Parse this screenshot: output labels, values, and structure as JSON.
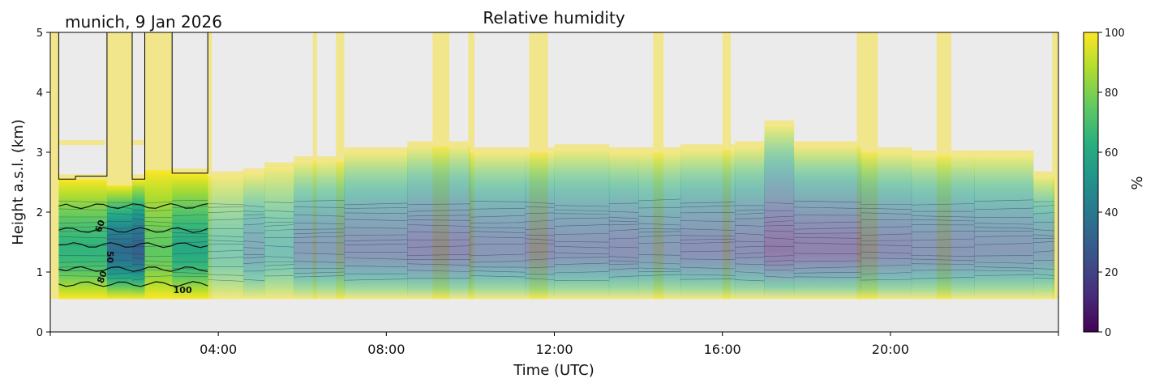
{
  "chart_data": {
    "type": "heatmap",
    "title": "Relative humidity",
    "subtitle": "munich, 9 Jan 2026",
    "xlabel": "Time (UTC)",
    "ylabel": "Height a.s.l. (km)",
    "xlim_hours": [
      0,
      24
    ],
    "ylim_km": [
      0,
      5
    ],
    "xticks": [
      {
        "hour": 4,
        "label": "04:00"
      },
      {
        "hour": 8,
        "label": "08:00"
      },
      {
        "hour": 12,
        "label": "12:00"
      },
      {
        "hour": 16,
        "label": "16:00"
      },
      {
        "hour": 20,
        "label": "20:00"
      }
    ],
    "yticks": [
      {
        "value": 0,
        "label": "0"
      },
      {
        "value": 1,
        "label": "1"
      },
      {
        "value": 2,
        "label": "2"
      },
      {
        "value": 3,
        "label": "3"
      },
      {
        "value": 4,
        "label": "4"
      },
      {
        "value": 5,
        "label": "5"
      }
    ],
    "colorbar": {
      "label": "%",
      "range": [
        0,
        100
      ],
      "colormap": "viridis",
      "ticks": [
        {
          "value": 0,
          "label": "0"
        },
        {
          "value": 20,
          "label": "20"
        },
        {
          "value": 40,
          "label": "40"
        },
        {
          "value": 60,
          "label": "60"
        },
        {
          "value": 80,
          "label": "80"
        },
        {
          "value": 100,
          "label": "100"
        }
      ]
    },
    "colors": {
      "background": "#ebebeb",
      "missing_fill": "#f2e68c",
      "contour_line": "#111111"
    },
    "data_base_km": 0.55,
    "solid_segment": {
      "start": 0.2,
      "end": 3.75
    },
    "columns": [
      {
        "start": 0.0,
        "end": 0.2,
        "top": 5.0,
        "rh_min": null
      },
      {
        "start": 0.2,
        "end": 1.35,
        "top": 2.55,
        "rh_min": 65
      },
      {
        "start": 1.35,
        "end": 1.95,
        "top": 2.45,
        "rh_min": 35
      },
      {
        "start": 1.95,
        "end": 2.25,
        "top": 2.55,
        "rh_min": 30
      },
      {
        "start": 2.25,
        "end": 2.9,
        "top": 2.7,
        "rh_min": 75
      },
      {
        "start": 2.9,
        "end": 3.75,
        "top": 2.65,
        "rh_min": 60
      },
      {
        "start": 3.75,
        "end": 4.6,
        "top": 2.6,
        "rh_min": 62
      },
      {
        "start": 4.6,
        "end": 5.1,
        "top": 2.65,
        "rh_min": 40
      },
      {
        "start": 5.1,
        "end": 5.8,
        "top": 2.75,
        "rh_min": 55
      },
      {
        "start": 5.8,
        "end": 7.0,
        "top": 2.85,
        "rh_min": 30
      },
      {
        "start": 7.0,
        "end": 8.5,
        "top": 3.0,
        "rh_min": 25
      },
      {
        "start": 8.5,
        "end": 10.0,
        "top": 3.1,
        "rh_min": 18
      },
      {
        "start": 10.0,
        "end": 11.3,
        "top": 3.0,
        "rh_min": 25
      },
      {
        "start": 11.3,
        "end": 12.0,
        "top": 3.0,
        "rh_min": 20
      },
      {
        "start": 12.0,
        "end": 13.3,
        "top": 3.05,
        "rh_min": 25
      },
      {
        "start": 13.3,
        "end": 14.0,
        "top": 3.0,
        "rh_min": 22
      },
      {
        "start": 14.0,
        "end": 15.0,
        "top": 3.0,
        "rh_min": 28
      },
      {
        "start": 15.0,
        "end": 16.3,
        "top": 3.05,
        "rh_min": 22
      },
      {
        "start": 16.3,
        "end": 17.0,
        "top": 3.1,
        "rh_min": 20
      },
      {
        "start": 17.0,
        "end": 17.7,
        "top": 3.45,
        "rh_min": 8
      },
      {
        "start": 17.7,
        "end": 19.3,
        "top": 3.1,
        "rh_min": 12
      },
      {
        "start": 19.3,
        "end": 20.5,
        "top": 3.0,
        "rh_min": 20
      },
      {
        "start": 20.5,
        "end": 22.0,
        "top": 2.95,
        "rh_min": 25
      },
      {
        "start": 22.0,
        "end": 23.4,
        "top": 2.95,
        "rh_min": 28
      },
      {
        "start": 23.4,
        "end": 23.9,
        "top": 2.6,
        "rh_min": 32
      },
      {
        "start": 23.9,
        "end": 24.0,
        "top": 5.0,
        "rh_min": null
      }
    ],
    "missing_data_columns": [
      {
        "start": 0.0,
        "end": 0.2,
        "top": 5.0
      },
      {
        "start": 1.35,
        "end": 1.95,
        "top": 5.0
      },
      {
        "start": 2.25,
        "end": 2.9,
        "top": 5.0
      },
      {
        "start": 3.75,
        "end": 3.85,
        "top": 5.0
      },
      {
        "start": 6.25,
        "end": 6.35,
        "top": 5.0
      },
      {
        "start": 6.8,
        "end": 7.0,
        "top": 5.0
      },
      {
        "start": 9.1,
        "end": 9.5,
        "top": 5.0
      },
      {
        "start": 9.95,
        "end": 10.1,
        "top": 5.0
      },
      {
        "start": 11.4,
        "end": 11.85,
        "top": 5.0
      },
      {
        "start": 14.35,
        "end": 14.6,
        "top": 5.0
      },
      {
        "start": 16.0,
        "end": 16.2,
        "top": 5.0
      },
      {
        "start": 19.2,
        "end": 19.7,
        "top": 5.0
      },
      {
        "start": 21.1,
        "end": 21.45,
        "top": 5.0
      },
      {
        "start": 23.85,
        "end": 24.0,
        "top": 5.0
      }
    ],
    "contour_labels": [
      {
        "text": "60",
        "hour": 1.25,
        "km": 1.75,
        "angle": -70
      },
      {
        "text": "50",
        "hour": 1.35,
        "km": 1.25,
        "angle": 90
      },
      {
        "text": "80",
        "hour": 1.3,
        "km": 0.9,
        "angle": -70
      },
      {
        "text": "100",
        "hour": 3.15,
        "km": 0.65,
        "angle": 0
      }
    ]
  }
}
